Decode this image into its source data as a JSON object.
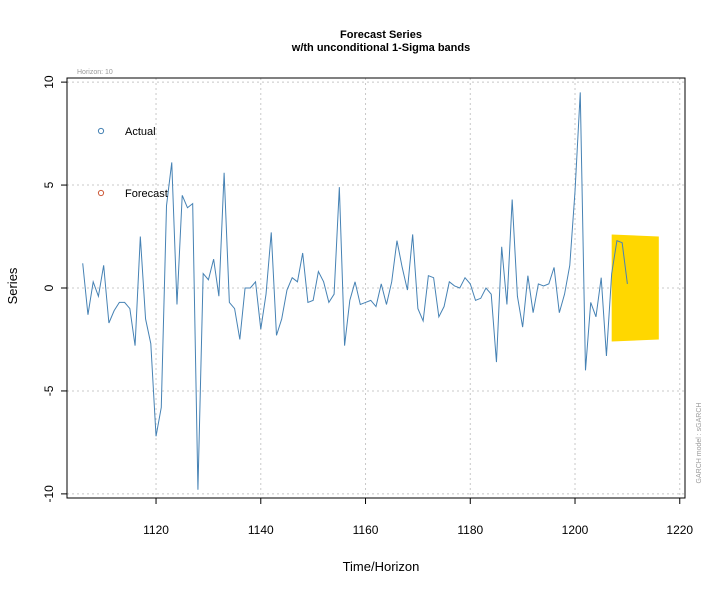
{
  "chart_data": {
    "type": "line",
    "title": "Forecast Series",
    "subtitle": "w/th unconditional 1-Sigma bands",
    "xlabel": "Time/Horizon",
    "ylabel": "Series",
    "horizon_label": "Horizon: 10",
    "side_label": "GARCH model : sGARCH",
    "xlim": [
      1103,
      1221
    ],
    "ylim": [
      -10.2,
      10.2
    ],
    "x_ticks": [
      1120,
      1140,
      1160,
      1180,
      1200,
      1220
    ],
    "y_ticks": [
      -10,
      -5,
      0,
      5,
      10
    ],
    "grid": true,
    "legend_position": "top-left",
    "legend": [
      {
        "label": "Actual",
        "color": "#4682b4"
      },
      {
        "label": "Forecast",
        "color": "#cd5c3c"
      }
    ],
    "series": [
      {
        "name": "Actual",
        "color": "#4682b4",
        "x_start": 1106,
        "values": [
          1.2,
          -1.3,
          0.3,
          -0.4,
          1.1,
          -1.7,
          -1.1,
          -0.7,
          -0.7,
          -1.0,
          -2.8,
          2.5,
          -1.5,
          -2.7,
          -7.2,
          -5.8,
          4.0,
          6.1,
          -0.8,
          4.5,
          3.9,
          4.1,
          -9.8,
          0.7,
          0.4,
          1.4,
          -0.4,
          5.6,
          -0.7,
          -1.0,
          -2.5,
          0.0,
          0.0,
          0.3,
          -2.0,
          -0.3,
          2.7,
          -2.3,
          -1.5,
          -0.1,
          0.5,
          0.3,
          1.7,
          -0.7,
          -0.6,
          0.8,
          0.3,
          -0.7,
          -0.3,
          4.9,
          -2.8,
          -0.6,
          0.3,
          -0.8,
          -0.7,
          -0.6,
          -0.9,
          0.2,
          -0.8,
          0.3,
          2.3,
          1.0,
          -0.1,
          2.6,
          -1.0,
          -1.6,
          0.6,
          0.5,
          -1.4,
          -0.9,
          0.3,
          0.1,
          0.0,
          0.5,
          0.2,
          -0.6,
          -0.5,
          0.0,
          -0.3,
          -3.6,
          2.0,
          -0.8,
          4.3,
          -0.4,
          -1.9,
          0.6,
          -1.2,
          0.2,
          0.1,
          0.2,
          1.0,
          -1.2,
          -0.3,
          1.1,
          4.7,
          9.5,
          -4.0,
          -0.7,
          -1.4,
          0.5,
          -3.3,
          0.7,
          2.3,
          2.2,
          0.2
        ]
      }
    ],
    "forecast_band": {
      "x": [
        1207,
        1216
      ],
      "upper": [
        2.6,
        2.5
      ],
      "lower": [
        -2.6,
        -2.5
      ],
      "color": "#ffd700"
    }
  }
}
